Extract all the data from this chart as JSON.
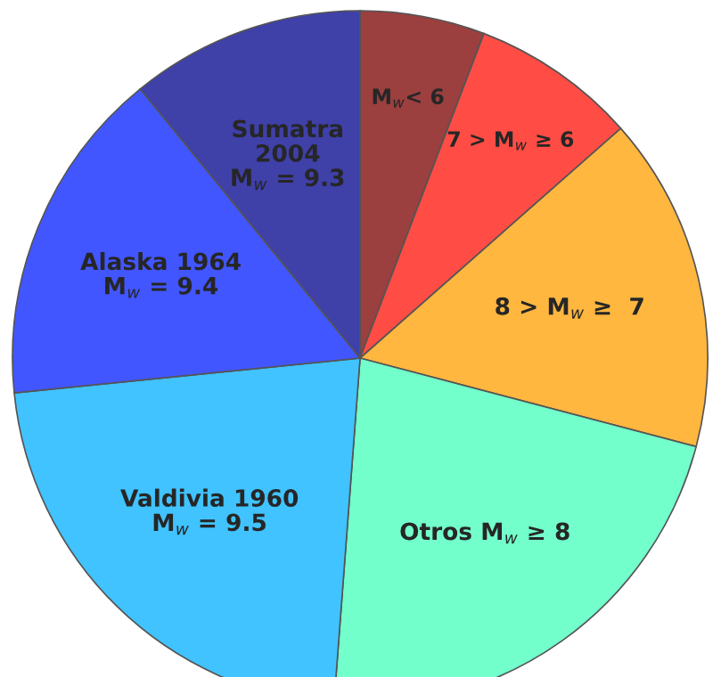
{
  "chart_data": {
    "type": "pie",
    "categories": [
      "M$_{w}$< 6",
      "7 > M$_{w}$ ≥ 6",
      "8 > M$_{w}$ ≥  7",
      "Otros M$_{w}$ ≥ 8",
      "Valdivia 1960\nM$_{w}$ = 9.5",
      "Alaska 1964\nM$_{w}$ = 9.4",
      "Sumatra\n2004\nM$_{w}$ = 9.3"
    ],
    "values": [
      5.8,
      7.7,
      15.6,
      22.1,
      22.2,
      15.7,
      10.9
    ],
    "colors": [
      "#9b3f3f",
      "#ff4d45",
      "#ffb73f",
      "#72ffcc",
      "#40c3ff",
      "#4256ff",
      "#3f40a8"
    ]
  }
}
